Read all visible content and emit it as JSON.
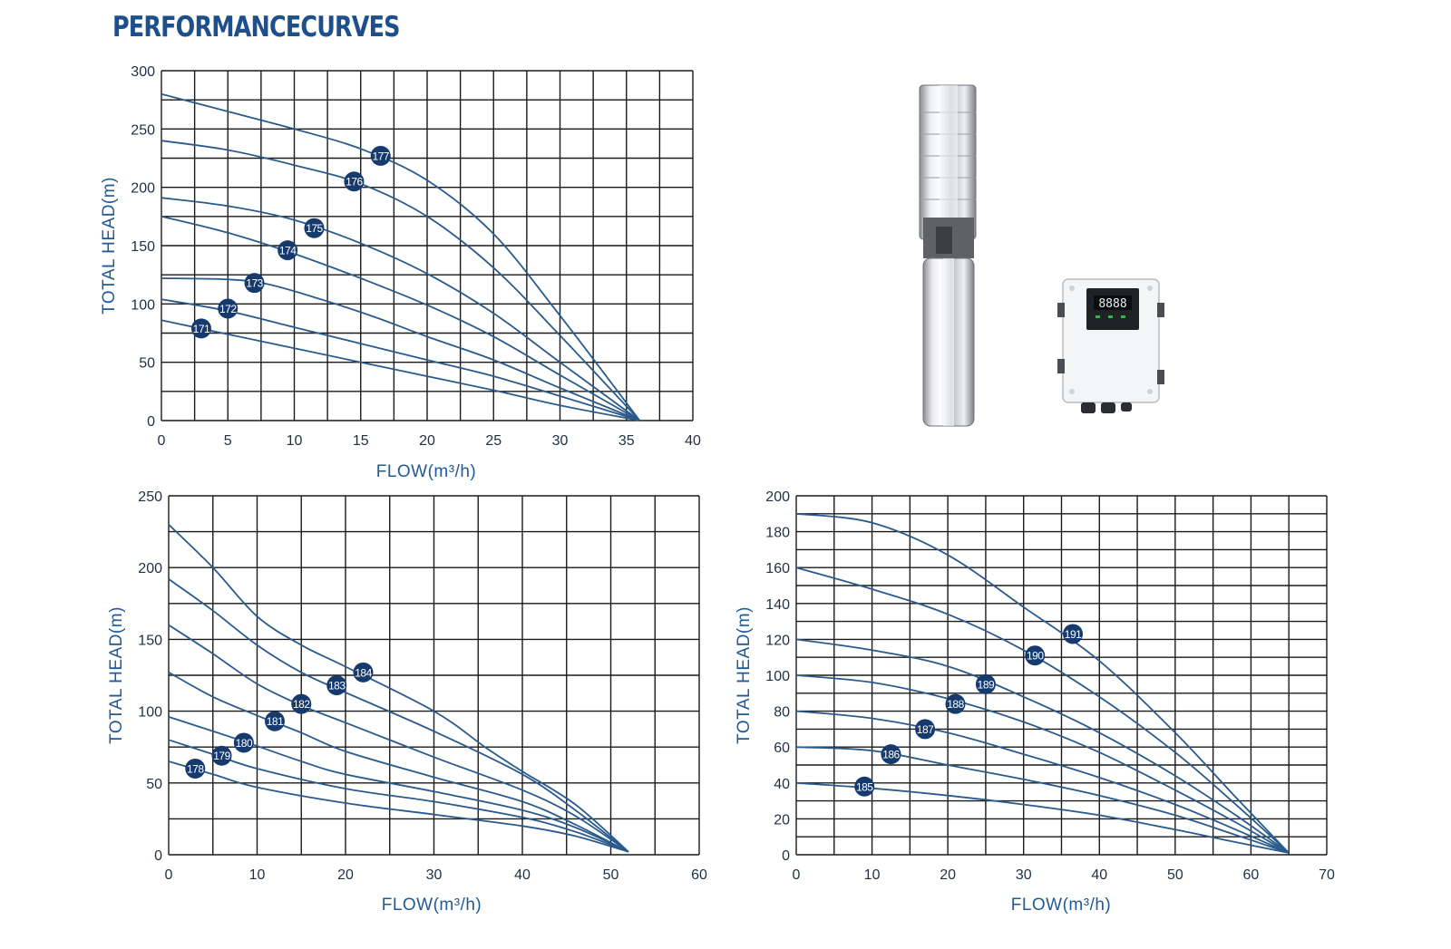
{
  "page": {
    "title": "PERFORMANCECURVES"
  },
  "chart_data": [
    {
      "type": "line",
      "title": "",
      "xlabel": "FLOW(m³/h)",
      "ylabel": "TOTAL HEAD(m)",
      "xlim": [
        0,
        40
      ],
      "ylim": [
        0,
        300
      ],
      "xticks": [
        0,
        5,
        10,
        15,
        20,
        25,
        30,
        35,
        40
      ],
      "yticks": [
        0,
        50,
        100,
        150,
        200,
        250,
        300
      ],
      "grid": true,
      "series": [
        {
          "name": "171",
          "label_at": [
            3,
            79
          ],
          "points": [
            [
              0,
              86
            ],
            [
              5,
              74
            ],
            [
              10,
              62
            ],
            [
              15,
              50
            ],
            [
              20,
              38
            ],
            [
              25,
              26
            ],
            [
              30,
              13
            ],
            [
              36,
              0
            ]
          ]
        },
        {
          "name": "172",
          "label_at": [
            5,
            96
          ],
          "points": [
            [
              0,
              104
            ],
            [
              5,
              94
            ],
            [
              10,
              80
            ],
            [
              15,
              66
            ],
            [
              20,
              52
            ],
            [
              25,
              38
            ],
            [
              30,
              21
            ],
            [
              36,
              0
            ]
          ]
        },
        {
          "name": "173",
          "label_at": [
            7,
            118
          ],
          "points": [
            [
              0,
              122
            ],
            [
              5,
              121
            ],
            [
              8,
              117
            ],
            [
              12,
              104
            ],
            [
              16,
              89
            ],
            [
              20,
              72
            ],
            [
              25,
              52
            ],
            [
              30,
              28
            ],
            [
              36,
              0
            ]
          ]
        },
        {
          "name": "174",
          "label_at": [
            9.5,
            146
          ],
          "points": [
            [
              0,
              175
            ],
            [
              5,
              161
            ],
            [
              10,
              143
            ],
            [
              15,
              122
            ],
            [
              20,
              99
            ],
            [
              25,
              72
            ],
            [
              30,
              39
            ],
            [
              36,
              0
            ]
          ]
        },
        {
          "name": "175",
          "label_at": [
            11.5,
            165
          ],
          "points": [
            [
              0,
              191
            ],
            [
              5,
              184
            ],
            [
              10,
              172
            ],
            [
              15,
              152
            ],
            [
              20,
              126
            ],
            [
              25,
              92
            ],
            [
              30,
              50
            ],
            [
              36,
              0
            ]
          ]
        },
        {
          "name": "176",
          "label_at": [
            14.5,
            205
          ],
          "points": [
            [
              0,
              240
            ],
            [
              5,
              232
            ],
            [
              10,
              219
            ],
            [
              15,
              203
            ],
            [
              20,
              175
            ],
            [
              25,
              131
            ],
            [
              30,
              73
            ],
            [
              36,
              0
            ]
          ]
        },
        {
          "name": "177",
          "label_at": [
            16.5,
            227
          ],
          "points": [
            [
              0,
              280
            ],
            [
              5,
              265
            ],
            [
              10,
              250
            ],
            [
              15,
              233
            ],
            [
              20,
              206
            ],
            [
              25,
              160
            ],
            [
              30,
              90
            ],
            [
              36,
              0
            ]
          ]
        }
      ]
    },
    {
      "type": "line",
      "title": "",
      "xlabel": "FLOW(m³/h)",
      "ylabel": "TOTAL HEAD(m)",
      "xlim": [
        0,
        60
      ],
      "ylim": [
        0,
        250
      ],
      "xticks": [
        0,
        10,
        20,
        30,
        40,
        50,
        60
      ],
      "yticks": [
        0,
        50,
        100,
        150,
        200,
        250
      ],
      "grid": true,
      "series": [
        {
          "name": "178",
          "label_at": [
            3,
            60
          ],
          "points": [
            [
              0,
              65
            ],
            [
              5,
              56
            ],
            [
              10,
              47
            ],
            [
              20,
              36
            ],
            [
              30,
              28
            ],
            [
              40,
              20
            ],
            [
              46,
              13
            ],
            [
              52,
              2
            ]
          ]
        },
        {
          "name": "179",
          "label_at": [
            6,
            69
          ],
          "points": [
            [
              0,
              80
            ],
            [
              5,
              70
            ],
            [
              10,
              60
            ],
            [
              20,
              46
            ],
            [
              30,
              37
            ],
            [
              40,
              26
            ],
            [
              46,
              16
            ],
            [
              52,
              2
            ]
          ]
        },
        {
          "name": "180",
          "label_at": [
            8.5,
            78
          ],
          "points": [
            [
              0,
              96
            ],
            [
              8,
              80
            ],
            [
              15,
              65
            ],
            [
              20,
              56
            ],
            [
              30,
              44
            ],
            [
              40,
              31
            ],
            [
              46,
              19
            ],
            [
              52,
              2
            ]
          ]
        },
        {
          "name": "181",
          "label_at": [
            12,
            93
          ],
          "points": [
            [
              0,
              127
            ],
            [
              5,
              110
            ],
            [
              10,
              97
            ],
            [
              15,
              85
            ],
            [
              20,
              72
            ],
            [
              30,
              54
            ],
            [
              40,
              37
            ],
            [
              46,
              21
            ],
            [
              52,
              2
            ]
          ]
        },
        {
          "name": "182",
          "label_at": [
            15,
            105
          ],
          "points": [
            [
              0,
              160
            ],
            [
              5,
              140
            ],
            [
              10,
              119
            ],
            [
              15,
              104
            ],
            [
              20,
              92
            ],
            [
              30,
              68
            ],
            [
              40,
              45
            ],
            [
              46,
              27
            ],
            [
              52,
              2
            ]
          ]
        },
        {
          "name": "183",
          "label_at": [
            19,
            118
          ],
          "points": [
            [
              0,
              192
            ],
            [
              5,
              170
            ],
            [
              10,
              146
            ],
            [
              15,
              127
            ],
            [
              20,
              113
            ],
            [
              30,
              86
            ],
            [
              40,
              56
            ],
            [
              46,
              31
            ],
            [
              52,
              2
            ]
          ]
        },
        {
          "name": "184",
          "label_at": [
            22,
            127
          ],
          "points": [
            [
              0,
              230
            ],
            [
              5,
              200
            ],
            [
              10,
              166
            ],
            [
              15,
              146
            ],
            [
              20,
              131
            ],
            [
              30,
              100
            ],
            [
              36,
              74
            ],
            [
              40,
              58
            ],
            [
              46,
              35
            ],
            [
              52,
              2
            ]
          ]
        }
      ]
    },
    {
      "type": "line",
      "title": "",
      "xlabel": "FLOW(m³/h)",
      "ylabel": "TOTAL HEAD(m)",
      "xlim": [
        0,
        70
      ],
      "ylim": [
        0,
        200
      ],
      "xticks": [
        0,
        10,
        20,
        30,
        40,
        50,
        60,
        70
      ],
      "yticks": [
        0,
        20,
        40,
        60,
        80,
        100,
        120,
        140,
        160,
        180,
        200
      ],
      "grid": true,
      "series": [
        {
          "name": "185",
          "label_at": [
            9,
            38
          ],
          "points": [
            [
              0,
              40
            ],
            [
              10,
              37
            ],
            [
              20,
              33
            ],
            [
              30,
              28
            ],
            [
              40,
              22
            ],
            [
              50,
              14
            ],
            [
              58,
              7
            ],
            [
              65,
              1
            ]
          ]
        },
        {
          "name": "186",
          "label_at": [
            12.5,
            56
          ],
          "points": [
            [
              0,
              60
            ],
            [
              10,
              58
            ],
            [
              20,
              50
            ],
            [
              30,
              42
            ],
            [
              40,
              33
            ],
            [
              50,
              22
            ],
            [
              58,
              11
            ],
            [
              65,
              1
            ]
          ]
        },
        {
          "name": "187",
          "label_at": [
            17,
            70
          ],
          "points": [
            [
              0,
              80
            ],
            [
              10,
              76
            ],
            [
              20,
              68
            ],
            [
              30,
              56
            ],
            [
              40,
              43
            ],
            [
              50,
              28
            ],
            [
              58,
              14
            ],
            [
              65,
              1
            ]
          ]
        },
        {
          "name": "188",
          "label_at": [
            21,
            84
          ],
          "points": [
            [
              0,
              100
            ],
            [
              10,
              96
            ],
            [
              20,
              87
            ],
            [
              30,
              74
            ],
            [
              40,
              57
            ],
            [
              50,
              36
            ],
            [
              58,
              18
            ],
            [
              65,
              1
            ]
          ]
        },
        {
          "name": "189",
          "label_at": [
            25,
            95
          ],
          "points": [
            [
              0,
              120
            ],
            [
              10,
              114
            ],
            [
              20,
              105
            ],
            [
              30,
              88
            ],
            [
              40,
              68
            ],
            [
              50,
              44
            ],
            [
              58,
              22
            ],
            [
              65,
              1
            ]
          ]
        },
        {
          "name": "190",
          "label_at": [
            31.5,
            111
          ],
          "points": [
            [
              0,
              160
            ],
            [
              10,
              148
            ],
            [
              20,
              134
            ],
            [
              30,
              114
            ],
            [
              40,
              88
            ],
            [
              50,
              57
            ],
            [
              58,
              28
            ],
            [
              65,
              1
            ]
          ]
        },
        {
          "name": "191",
          "label_at": [
            36.5,
            123
          ],
          "points": [
            [
              0,
              190
            ],
            [
              10,
              185
            ],
            [
              20,
              167
            ],
            [
              30,
              138
            ],
            [
              40,
              108
            ],
            [
              50,
              68
            ],
            [
              58,
              32
            ],
            [
              65,
              1
            ]
          ]
        }
      ]
    }
  ],
  "images": {
    "pump": "stainless-steel-submersible-pump",
    "controller": "solar-pump-controller-box",
    "controller_display": "8888"
  },
  "colors": {
    "title": "#1c4f8c",
    "axis_text": "#1f5a96",
    "curve": "#2a5b8c",
    "marker": "#173a6e",
    "grid": "#1a1a1a"
  }
}
